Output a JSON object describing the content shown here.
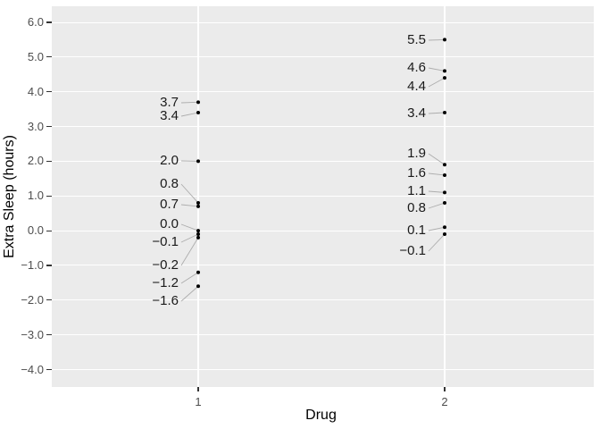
{
  "chart_data": {
    "type": "scatter",
    "title": "",
    "xlabel": "Drug",
    "ylabel": "Extra Sleep (hours)",
    "x_categories": [
      "1",
      "2"
    ],
    "y_ticks": {
      "values": [
        6.0,
        5.0,
        4.0,
        3.0,
        2.0,
        1.0,
        0.0,
        -1.0,
        -2.0,
        -3.0,
        -4.0
      ],
      "labels": [
        "6.0",
        "5.0",
        "4.0",
        "3.0",
        "2.0",
        "1.0",
        "0.0",
        "−1.0",
        "−2.0",
        "−3.0",
        "−4.0"
      ]
    },
    "ylim": [
      -4.5,
      6.45
    ],
    "grid": {
      "major": true,
      "minor": false,
      "legend": "none"
    },
    "series": [
      {
        "name": "Drug 1",
        "x_category": "1",
        "points": [
          {
            "value": 3.7,
            "label": "3.7",
            "label_py": 115
          },
          {
            "value": 3.4,
            "label": "3.4",
            "label_py": 130
          },
          {
            "value": 2.0,
            "label": "2.0",
            "label_py": 180
          },
          {
            "value": 0.8,
            "label": "0.8",
            "label_py": 206
          },
          {
            "value": 0.7,
            "label": "0.7",
            "label_py": 229
          },
          {
            "value": 0.0,
            "label": "0.0",
            "label_py": 251
          },
          {
            "value": -0.1,
            "label": "−0.1",
            "label_py": 271
          },
          {
            "value": -0.2,
            "label": "−0.2",
            "label_py": 297
          },
          {
            "value": -1.2,
            "label": "−1.2",
            "label_py": 317
          },
          {
            "value": -1.6,
            "label": "−1.6",
            "label_py": 337
          }
        ]
      },
      {
        "name": "Drug 2",
        "x_category": "2",
        "points": [
          {
            "value": 5.5,
            "label": "5.5",
            "label_py": 45
          },
          {
            "value": 4.6,
            "label": "4.6",
            "label_py": 76
          },
          {
            "value": 4.4,
            "label": "4.4",
            "label_py": 97
          },
          {
            "value": 3.4,
            "label": "3.4",
            "label_py": 127
          },
          {
            "value": 1.9,
            "label": "1.9",
            "label_py": 172
          },
          {
            "value": 1.6,
            "label": "1.6",
            "label_py": 194
          },
          {
            "value": 1.1,
            "label": "1.1",
            "label_py": 214
          },
          {
            "value": 0.8,
            "label": "0.8",
            "label_py": 233
          },
          {
            "value": 0.1,
            "label": "0.1",
            "label_py": 258
          },
          {
            "value": -0.1,
            "label": "−0.1",
            "label_py": 281
          }
        ]
      }
    ],
    "colors": {
      "panel_bg": "#ebebeb",
      "grid": "#ffffff",
      "point": "#000000",
      "leader_line": "#adadad",
      "axis_text": "#4d4d4d",
      "axis_title": "#000000",
      "data_label": "#1a1a1a",
      "tick_mark": "#333333",
      "page_bg": "#ffffff"
    }
  }
}
